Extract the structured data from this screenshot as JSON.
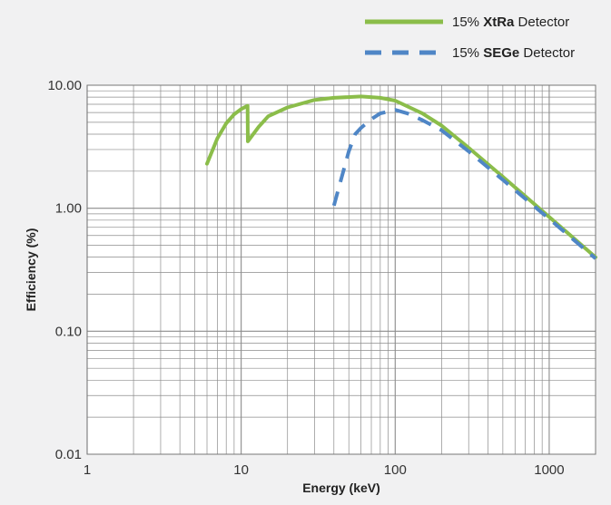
{
  "colors": {
    "background": "#f1f1f2",
    "plot_background": "#ffffff",
    "grid": "#8c8c8c",
    "xtra": "#8bbd4a",
    "sege": "#4f86c6"
  },
  "legend": {
    "items": [
      {
        "prefix": "15% ",
        "bold": "XtRa",
        "suffix": " Detector",
        "color": "#8bbd4a",
        "style": "solid"
      },
      {
        "prefix": "15% ",
        "bold": "SEGe",
        "suffix": " Detector",
        "color": "#4f86c6",
        "style": "dashed"
      }
    ]
  },
  "chart_data": {
    "type": "line",
    "title": "",
    "xlabel": "Energy (keV)",
    "ylabel": "Efficiency (%)",
    "xscale": "log",
    "yscale": "log",
    "xlim": [
      1,
      2000
    ],
    "ylim": [
      0.01,
      10
    ],
    "xticks": [
      1,
      10,
      100,
      1000
    ],
    "xtick_labels": [
      "1",
      "10",
      "100",
      "1000"
    ],
    "yticks": [
      0.01,
      0.1,
      1,
      10
    ],
    "ytick_labels": [
      "0.01",
      "0.10",
      "1.00",
      "10.00"
    ],
    "grid": true,
    "legend_position": "top-right",
    "series": [
      {
        "name": "15% XtRa Detector",
        "color": "#8bbd4a",
        "style": "solid",
        "x": [
          6,
          7,
          8,
          9,
          10,
          11,
          11.05,
          13,
          15,
          20,
          30,
          40,
          60,
          80,
          100,
          150,
          200,
          300,
          500,
          1000,
          2000
        ],
        "y": [
          2.3,
          3.7,
          4.9,
          5.8,
          6.4,
          6.8,
          3.5,
          4.6,
          5.6,
          6.6,
          7.6,
          7.9,
          8.1,
          7.9,
          7.5,
          5.9,
          4.7,
          3.1,
          1.8,
          0.85,
          0.4
        ]
      },
      {
        "name": "15% SEGe Detector",
        "color": "#4f86c6",
        "style": "dashed",
        "x": [
          40,
          45,
          50,
          55,
          60,
          70,
          80,
          100,
          120,
          150,
          200,
          300,
          500,
          1000,
          2000
        ],
        "y": [
          1.05,
          1.8,
          2.9,
          4.0,
          4.5,
          5.3,
          5.9,
          6.3,
          5.9,
          5.2,
          4.3,
          2.9,
          1.7,
          0.82,
          0.39
        ]
      }
    ]
  }
}
